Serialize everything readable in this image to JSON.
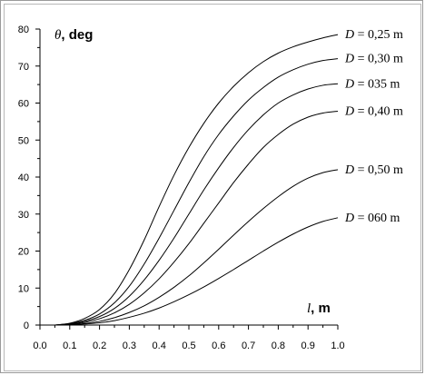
{
  "chart_data": {
    "type": "line",
    "title": "",
    "ylabel_symbol": "θ",
    "ylabel_text": ", deg",
    "xlabel_symbol": "l",
    "xlabel_text": ", m",
    "xlim": [
      0,
      1.0
    ],
    "ylim": [
      0,
      80
    ],
    "x_ticks": [
      "0.0",
      "0.1",
      "0.2",
      "0.3",
      "0.4",
      "0.5",
      "0.6",
      "0.7",
      "0.8",
      "0.9",
      "1.0"
    ],
    "y_ticks": [
      "0",
      "10",
      "20",
      "30",
      "40",
      "50",
      "60",
      "70",
      "80"
    ],
    "grid": false,
    "series": [
      {
        "label_symbol": "D",
        "label_value": " = 0,25 m",
        "x": [
          0.05,
          0.1,
          0.15,
          0.2,
          0.25,
          0.3,
          0.35,
          0.4,
          0.45,
          0.5,
          0.55,
          0.6,
          0.65,
          0.7,
          0.75,
          0.8,
          0.85,
          0.9,
          0.95,
          1.0
        ],
        "y": [
          0,
          0.5,
          1.8,
          4.2,
          8.5,
          15,
          23,
          32,
          40.5,
          48,
          54.5,
          60,
          64.5,
          68.2,
          71.2,
          73.5,
          75.2,
          76.5,
          77.6,
          78.5
        ]
      },
      {
        "label_symbol": "D",
        "label_value": " = 0,30 m",
        "x": [
          0.05,
          0.1,
          0.15,
          0.2,
          0.25,
          0.3,
          0.35,
          0.4,
          0.45,
          0.5,
          0.55,
          0.6,
          0.65,
          0.7,
          0.75,
          0.8,
          0.85,
          0.9,
          0.95,
          1.0
        ],
        "y": [
          0,
          0.4,
          1.3,
          3.0,
          6.0,
          10.5,
          16.5,
          23.5,
          31,
          38.5,
          45.5,
          51.5,
          56.5,
          60.8,
          64.2,
          67,
          69,
          70.5,
          71.5,
          72
        ]
      },
      {
        "label_symbol": "D",
        "label_value": " = 035 m",
        "x": [
          0.05,
          0.1,
          0.15,
          0.2,
          0.25,
          0.3,
          0.35,
          0.4,
          0.45,
          0.5,
          0.55,
          0.6,
          0.65,
          0.7,
          0.75,
          0.8,
          0.85,
          0.9,
          0.95,
          1.0
        ],
        "y": [
          0,
          0.3,
          1.0,
          2.3,
          4.5,
          7.8,
          12.2,
          17.5,
          23.5,
          30,
          36.5,
          42.5,
          48,
          52.8,
          56.8,
          60,
          62.2,
          63.8,
          64.8,
          65.2
        ]
      },
      {
        "label_symbol": "D",
        "label_value": " = 0,40 m",
        "x": [
          0.05,
          0.1,
          0.15,
          0.2,
          0.25,
          0.3,
          0.35,
          0.4,
          0.45,
          0.5,
          0.55,
          0.6,
          0.65,
          0.7,
          0.75,
          0.8,
          0.85,
          0.9,
          0.95,
          1.0
        ],
        "y": [
          0,
          0.2,
          0.7,
          1.7,
          3.3,
          5.6,
          8.7,
          12.5,
          17,
          22,
          27.5,
          33,
          38.5,
          43.5,
          48,
          51.5,
          54.3,
          56.2,
          57.3,
          57.8
        ]
      },
      {
        "label_symbol": "D",
        "label_value": " = 0,50 m",
        "x": [
          0.05,
          0.1,
          0.15,
          0.2,
          0.25,
          0.3,
          0.35,
          0.4,
          0.45,
          0.5,
          0.55,
          0.6,
          0.65,
          0.7,
          0.75,
          0.8,
          0.85,
          0.9,
          0.95,
          1.0
        ],
        "y": [
          0,
          0.1,
          0.4,
          1.0,
          2.0,
          3.4,
          5.2,
          7.5,
          10.2,
          13.3,
          16.8,
          20.5,
          24.3,
          28,
          31.5,
          34.7,
          37.5,
          39.7,
          41.2,
          42
        ]
      },
      {
        "label_symbol": "D",
        "label_value": " = 060 m",
        "x": [
          0.05,
          0.1,
          0.15,
          0.2,
          0.25,
          0.3,
          0.35,
          0.4,
          0.45,
          0.5,
          0.55,
          0.6,
          0.65,
          0.7,
          0.75,
          0.8,
          0.85,
          0.9,
          0.95,
          1.0
        ],
        "y": [
          0,
          0.1,
          0.3,
          0.6,
          1.2,
          2.1,
          3.2,
          4.6,
          6.3,
          8.2,
          10.3,
          12.6,
          15,
          17.5,
          20,
          22.4,
          24.6,
          26.5,
          28,
          29
        ]
      }
    ]
  }
}
